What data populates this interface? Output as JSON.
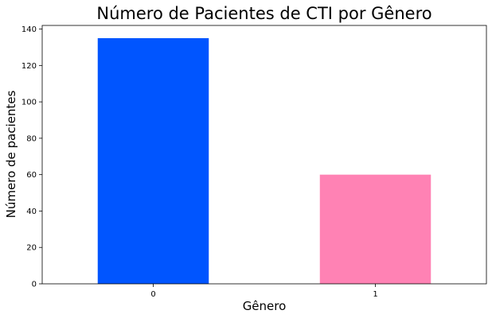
{
  "chart_data": {
    "type": "bar",
    "title": "Número de Pacientes de CTI por Gênero",
    "xlabel": "Gênero",
    "ylabel": "Número de pacientes",
    "categories": [
      "0",
      "1"
    ],
    "values": [
      135,
      60
    ],
    "bar_colors": [
      "#0055ff",
      "#ff82b4"
    ],
    "ylim": [
      0,
      142
    ],
    "yticks": [
      0,
      20,
      40,
      60,
      80,
      100,
      120,
      140
    ],
    "grid": false,
    "legend": "none"
  }
}
